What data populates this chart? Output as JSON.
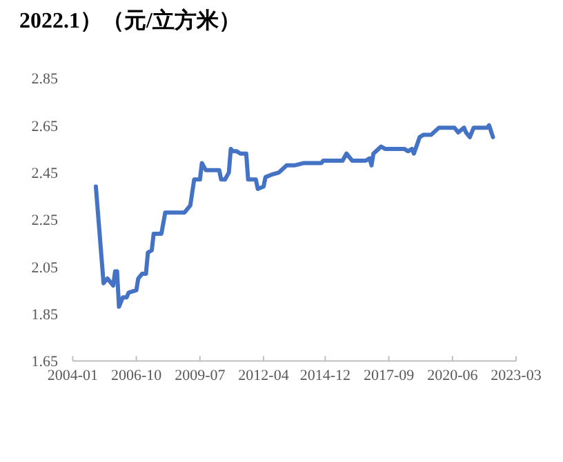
{
  "chart_data": {
    "type": "line",
    "title": "2022.1）（元/立方米）",
    "x": [
      "2005-01",
      "2005-05",
      "2005-07",
      "2005-09",
      "2005-10",
      "2005-11",
      "2005-12",
      "2006-01",
      "2006-03",
      "2006-05",
      "2006-06",
      "2006-10",
      "2006-11",
      "2007-01",
      "2007-03",
      "2007-04",
      "2007-06",
      "2007-07",
      "2007-11",
      "2008-01",
      "2008-11",
      "2009-02",
      "2009-04",
      "2009-07",
      "2009-08",
      "2009-10",
      "2010-05",
      "2010-06",
      "2010-08",
      "2010-10",
      "2010-11",
      "2010-12",
      "2011-02",
      "2011-04",
      "2011-07",
      "2011-08",
      "2011-12",
      "2012-01",
      "2012-04",
      "2012-05",
      "2012-08",
      "2012-12",
      "2013-04",
      "2013-08",
      "2014-01",
      "2014-10",
      "2014-11",
      "2015-09",
      "2015-11",
      "2016-02",
      "2016-09",
      "2016-11",
      "2016-12",
      "2017-01",
      "2017-05",
      "2017-07",
      "2018-05",
      "2018-07",
      "2018-09",
      "2018-10",
      "2019-01",
      "2019-03",
      "2019-07",
      "2019-11",
      "2020-01",
      "2020-03",
      "2020-07",
      "2020-09",
      "2020-12",
      "2021-01",
      "2021-03",
      "2021-05",
      "2021-12",
      "2022-01",
      "2022-03"
    ],
    "values": [
      2.39,
      1.98,
      2.0,
      1.98,
      1.97,
      2.03,
      2.03,
      1.88,
      1.92,
      1.92,
      1.94,
      1.95,
      2.0,
      2.02,
      2.02,
      2.11,
      2.12,
      2.19,
      2.19,
      2.28,
      2.28,
      2.31,
      2.42,
      2.42,
      2.49,
      2.46,
      2.46,
      2.42,
      2.42,
      2.45,
      2.55,
      2.54,
      2.54,
      2.53,
      2.53,
      2.42,
      2.42,
      2.38,
      2.39,
      2.43,
      2.44,
      2.45,
      2.48,
      2.48,
      2.49,
      2.49,
      2.5,
      2.5,
      2.53,
      2.5,
      2.5,
      2.51,
      2.48,
      2.53,
      2.56,
      2.55,
      2.55,
      2.54,
      2.55,
      2.53,
      2.6,
      2.61,
      2.61,
      2.64,
      2.64,
      2.64,
      2.64,
      2.62,
      2.64,
      2.62,
      2.6,
      2.64,
      2.64,
      2.65,
      2.6
    ],
    "color": "#4472c4",
    "xlim": [
      "2004-01",
      "2023-03"
    ],
    "xticks": [
      "2004-01",
      "2006-10",
      "2009-07",
      "2012-04",
      "2014-12",
      "2017-09",
      "2020-06",
      "2023-03"
    ],
    "ylim": [
      1.65,
      2.85
    ],
    "yticks": [
      1.65,
      1.85,
      2.05,
      2.25,
      2.45,
      2.65,
      2.85
    ]
  }
}
